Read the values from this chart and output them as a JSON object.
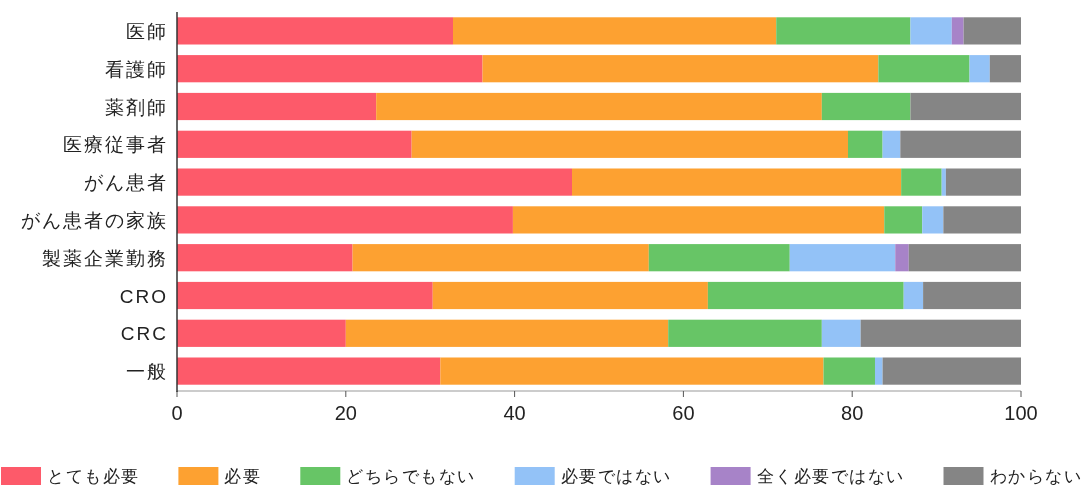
{
  "chart_data": {
    "type": "bar",
    "orientation": "horizontal",
    "stacked": true,
    "categories": [
      "医師",
      "看護師",
      "薬剤師",
      "医療従事者",
      "がん患者",
      "がん患者の家族",
      "製薬企業勤務",
      "CRO",
      "CRC",
      "一般"
    ],
    "series": [
      {
        "name": "とても必要",
        "color": "#fd5a6a",
        "values": [
          32.7,
          36.2,
          23.6,
          27.8,
          46.8,
          39.8,
          20.8,
          30.3,
          20.0,
          31.2
        ]
      },
      {
        "name": "必要",
        "color": "#fda131",
        "values": [
          38.3,
          46.9,
          52.8,
          51.7,
          39.0,
          44.0,
          35.1,
          32.6,
          38.2,
          45.4
        ]
      },
      {
        "name": "どちらでもない",
        "color": "#67c566",
        "values": [
          15.9,
          10.8,
          10.5,
          4.1,
          4.8,
          4.5,
          16.7,
          23.2,
          18.2,
          6.1
        ]
      },
      {
        "name": "必要ではない",
        "color": "#93c2f7",
        "values": [
          4.9,
          2.4,
          0,
          2.1,
          0.5,
          2.5,
          12.5,
          2.3,
          4.6,
          0.9
        ]
      },
      {
        "name": "全く必要ではない",
        "color": "#a783c8",
        "values": [
          1.4,
          0,
          0,
          0,
          0,
          0,
          1.6,
          0,
          0,
          0
        ]
      },
      {
        "name": "わからない",
        "color": "#858585",
        "values": [
          6.8,
          3.7,
          13.1,
          14.3,
          8.9,
          9.2,
          13.3,
          11.6,
          19.0,
          16.4
        ]
      }
    ],
    "xlim": [
      0,
      100
    ],
    "xticks": [
      0,
      20,
      40,
      60,
      80,
      100
    ],
    "legend": "bottom",
    "grid": false
  }
}
